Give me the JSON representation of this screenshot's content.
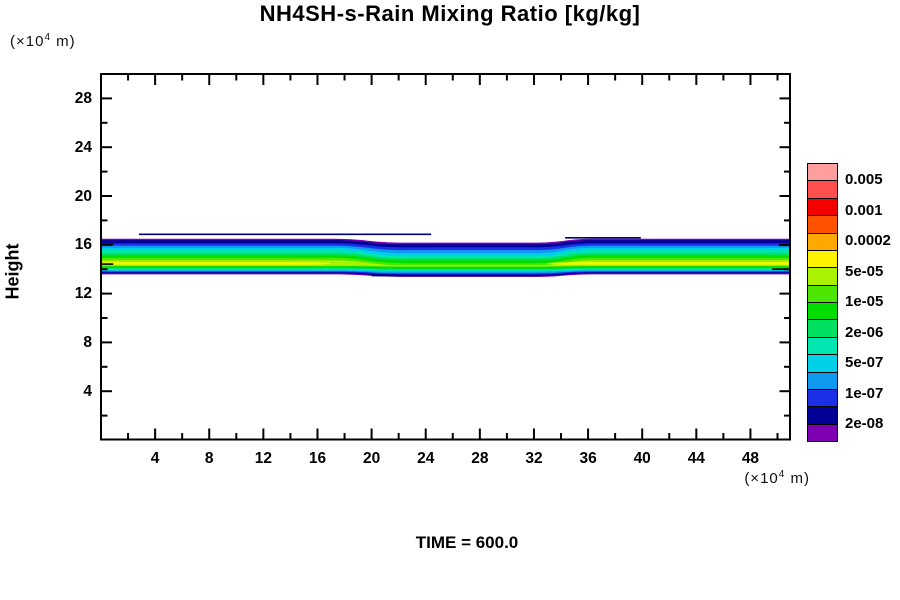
{
  "header": {
    "title": "NH4SH-s-Rain Mixing Ratio [kg/kg]"
  },
  "footer": {
    "time_label": "TIME = 600.0"
  },
  "y_axis": {
    "label": "Height",
    "unit_pre": "(×10",
    "unit_exp": "4",
    "unit_post": " m)"
  },
  "x_axis": {
    "unit_pre": "(×10",
    "unit_exp": "4",
    "unit_post": " m)"
  },
  "colorbar": {
    "labels": [
      "0.005",
      "0.001",
      "0.0002",
      "5e-05",
      "1e-05",
      "2e-06",
      "5e-07",
      "1e-07",
      "2e-08"
    ],
    "colors_top_to_bottom": [
      "#ff9e9e",
      "#ff4f4f",
      "#f50000",
      "#ff5200",
      "#ffa800",
      "#fff200",
      "#aaf200",
      "#4ce600",
      "#00dd00",
      "#00e060",
      "#00e6b0",
      "#00cfe8",
      "#1099f0",
      "#1a2fe6",
      "#000096",
      "#7d00b4"
    ]
  },
  "chart_data": {
    "type": "contour",
    "title": "NH4SH-s-Rain Mixing Ratio [kg/kg]",
    "xlabel": "(×10^4 m)",
    "ylabel": "Height (×10^4 m)",
    "time": 600.0,
    "x_range": [
      0,
      51
    ],
    "y_range": [
      0,
      30
    ],
    "x_major_ticks": [
      4,
      8,
      12,
      16,
      20,
      24,
      28,
      32,
      36,
      40,
      44,
      48
    ],
    "x_minor_step": 2,
    "y_major_ticks": [
      4,
      8,
      12,
      16,
      20,
      24,
      28
    ],
    "y_minor_step": 2,
    "grid": false,
    "legend_position": "right-colorbar",
    "levels_kg_per_kg": [
      "2e-08",
      "5e-08",
      "1e-07",
      "2e-07",
      "5e-07",
      "1e-06",
      "2e-06",
      "5e-06",
      "1e-05",
      "2e-05",
      "5e-05",
      "0.0002",
      "0.0005",
      "0.001",
      "0.002",
      "0.005"
    ],
    "description": "Thin horizontal rain layer spanning the full x-domain between heights ~13.4 and ~16.5 (x10^4 m). Peak mixing ratio ~5e-05 kg/kg (yellow core near height 14.5) on the left and right flanks; layer sags ~0.3 and core weakens to ~1e-05 between x~18 and x~33.",
    "band_layers": [
      {
        "level": "2e-08",
        "color": "#7d00b4",
        "top_edge": 16.5,
        "top_mid": 16.18,
        "bot_edge": 13.58,
        "bot_mid": 13.37
      },
      {
        "level": "5e-08",
        "color": "#000096",
        "top_edge": 16.38,
        "top_mid": 16.04,
        "bot_edge": 13.66,
        "bot_mid": 13.46
      },
      {
        "level": "1e-07",
        "color": "#1a2fe6",
        "top_edge": 16.13,
        "top_mid": 15.8,
        "bot_edge": 13.75,
        "bot_mid": 13.57
      },
      {
        "level": "2e-07",
        "color": "#1099f0",
        "top_edge": 15.93,
        "top_mid": 15.56,
        "bot_edge": 13.83,
        "bot_mid": 13.66
      },
      {
        "level": "5e-07",
        "color": "#00cfe8",
        "top_edge": 15.76,
        "top_mid": 15.32,
        "bot_edge": 13.88,
        "bot_mid": 13.79
      },
      {
        "level": "1e-06",
        "color": "#00e6b0",
        "top_edge": 15.56,
        "top_mid": 15.07,
        "bot_edge": 13.96,
        "bot_mid": 13.87
      },
      {
        "level": "2e-06",
        "color": "#00e060",
        "top_edge": 15.36,
        "top_mid": 14.9,
        "bot_edge": 14.04,
        "bot_mid": 13.95
      },
      {
        "level": "5e-06",
        "color": "#00dd00",
        "top_edge": 15.14,
        "top_mid": 14.73,
        "bot_edge": 14.12,
        "bot_mid": 14.04
      },
      {
        "level": "1e-05",
        "color": "#4ce600",
        "top_edge": 14.94,
        "top_mid": 14.49,
        "bot_edge": 14.24,
        "bot_mid": 14.19
      },
      {
        "level": "2e-05",
        "color": "#aaf200",
        "top_edge": 14.73,
        "top_mid": 14.32,
        "bot_edge": 14.28,
        "bot_mid": 14.24
      }
    ],
    "yellow_core": {
      "level": "5e-05",
      "color": "#fff200",
      "top": 14.57,
      "bottom": 14.37,
      "x_segments": [
        [
          0,
          17
        ],
        [
          33,
          51
        ]
      ]
    },
    "extra_contour_lines": [
      {
        "color": "#000080",
        "h": 16.86,
        "x1": 2.8,
        "x2": 24.4
      },
      {
        "color": "#000080",
        "h": 16.57,
        "x1": 34.3,
        "x2": 39.9
      },
      {
        "color": "#000080",
        "h": 13.48,
        "x1": 20.0,
        "x2": 32.5
      },
      {
        "color": "#000000",
        "h": 16.03,
        "x1": 0.0,
        "x2": 0.9
      },
      {
        "color": "#000000",
        "h": 14.42,
        "x1": 0.0,
        "x2": 0.9
      },
      {
        "color": "#000000",
        "h": 15.96,
        "x1": 50.1,
        "x2": 51.0
      },
      {
        "color": "#000000",
        "h": 14.0,
        "x1": 49.6,
        "x2": 51.0
      }
    ]
  }
}
